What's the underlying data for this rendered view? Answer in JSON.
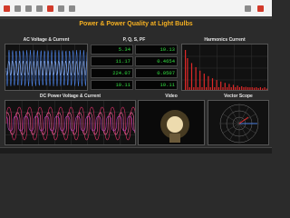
{
  "header": {
    "title": "Power & Power Quality at Light Bulbs"
  },
  "panels": [
    {
      "title": "AC Voltage & Current"
    },
    {
      "title": "P, Q, S, PF"
    },
    {
      "title": "Harmonics Current"
    },
    {
      "title": "DC Power Voltage & Current"
    },
    {
      "title": "Video"
    },
    {
      "title": "Vector Scope"
    }
  ],
  "meters": {
    "rows": [
      [
        "5.34",
        "10.13"
      ],
      [
        "11.17",
        "0.4654"
      ],
      [
        "224.07",
        "0.0507"
      ],
      [
        "10.11",
        "10.11"
      ]
    ]
  }
}
